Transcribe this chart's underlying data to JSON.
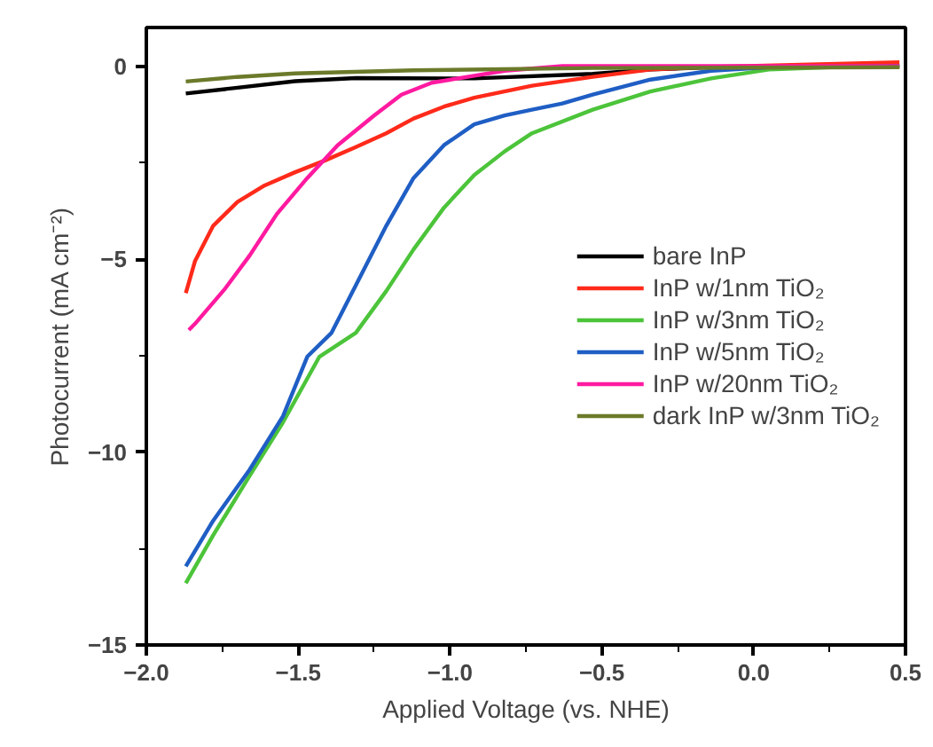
{
  "chart_data": {
    "type": "line",
    "xlabel": "Applied Voltage (vs. NHE)",
    "ylabel": "Photocurrent (mA cm⁻²)",
    "xlim": [
      -2.0,
      0.5
    ],
    "ylim": [
      -15,
      1
    ],
    "xticks": [
      {
        "value": -2.0,
        "label": "−2.0"
      },
      {
        "value": -1.5,
        "label": "−1.5"
      },
      {
        "value": -1.0,
        "label": "−1.0"
      },
      {
        "value": -0.5,
        "label": "−0.5"
      },
      {
        "value": 0.0,
        "label": "0.0"
      },
      {
        "value": 0.5,
        "label": "0.5"
      }
    ],
    "yticks": [
      {
        "value": -15,
        "label": "−15"
      },
      {
        "value": -10,
        "label": "−10"
      },
      {
        "value": -5,
        "label": "−5"
      },
      0
    ],
    "grid": false,
    "legend": "right",
    "line_style": "solid",
    "marker": "none",
    "series": [
      {
        "name": "bare InP",
        "color": "#000000",
        "x": [
          -1.87,
          -1.7,
          -1.51,
          -1.31,
          -0.92,
          -0.53,
          -0.34,
          -0.14,
          0.48
        ],
        "values": [
          -0.71,
          -0.56,
          -0.39,
          -0.31,
          -0.32,
          -0.2,
          -0.09,
          -0.03,
          0
        ]
      },
      {
        "name": "InP w/1nm TiO₂",
        "color": "#ff2a1a",
        "x": [
          -1.87,
          -1.84,
          -1.78,
          -1.7,
          -1.61,
          -1.51,
          -1.41,
          -1.31,
          -1.21,
          -1.12,
          -1.02,
          -0.92,
          -0.73,
          -0.53,
          -0.34,
          -0.14,
          0.48
        ],
        "values": [
          -5.88,
          -5.06,
          -4.14,
          -3.52,
          -3.09,
          -2.75,
          -2.44,
          -2.1,
          -1.74,
          -1.36,
          -1.05,
          -0.82,
          -0.51,
          -0.28,
          -0.09,
          -0.02,
          0.1
        ]
      },
      {
        "name": "InP w/3nm TiO₂",
        "color": "#4cc43a",
        "x": [
          -1.87,
          -1.78,
          -1.66,
          -1.55,
          -1.43,
          -1.31,
          -1.21,
          -1.12,
          -1.02,
          -0.92,
          -0.82,
          -0.73,
          -0.53,
          -0.34,
          -0.14,
          0.05,
          0.25,
          0.48
        ],
        "values": [
          -13.4,
          -12.16,
          -10.62,
          -9.23,
          -7.53,
          -6.91,
          -5.83,
          -4.75,
          -3.67,
          -2.82,
          -2.21,
          -1.74,
          -1.13,
          -0.66,
          -0.32,
          -0.09,
          -0.03,
          -0.02
        ]
      },
      {
        "name": "InP w/5nm TiO₂",
        "color": "#1f5ec4",
        "x": [
          -1.87,
          -1.78,
          -1.66,
          -1.55,
          -1.47,
          -1.39,
          -1.31,
          -1.21,
          -1.12,
          -1.02,
          -0.92,
          -0.82,
          -0.73,
          -0.63,
          -0.53,
          -0.34,
          -0.14,
          0.05,
          0.48
        ],
        "values": [
          -12.96,
          -11.78,
          -10.46,
          -9.07,
          -7.53,
          -6.91,
          -5.68,
          -4.14,
          -2.9,
          -2.05,
          -1.51,
          -1.28,
          -1.13,
          -0.97,
          -0.74,
          -0.35,
          -0.12,
          -0.03,
          0
        ]
      },
      {
        "name": "InP w/20nm TiO₂",
        "color": "#ff1aa0",
        "x": [
          -1.86,
          -1.84,
          -1.74,
          -1.66,
          -1.57,
          -1.47,
          -1.37,
          -1.25,
          -1.16,
          -1.06,
          -0.92,
          -0.82,
          -0.63,
          -0.14,
          0.48
        ],
        "values": [
          -6.84,
          -6.68,
          -5.76,
          -4.91,
          -3.83,
          -2.9,
          -2.05,
          -1.28,
          -0.74,
          -0.43,
          -0.25,
          -0.12,
          0,
          0,
          0
        ]
      },
      {
        "name": "dark InP w/3nm TiO₂",
        "color": "#6b7a2a",
        "x": [
          -1.87,
          -1.7,
          -1.51,
          -1.12,
          -0.53,
          0.48
        ],
        "values": [
          -0.4,
          -0.28,
          -0.19,
          -0.11,
          -0.05,
          -0.03
        ]
      }
    ]
  }
}
